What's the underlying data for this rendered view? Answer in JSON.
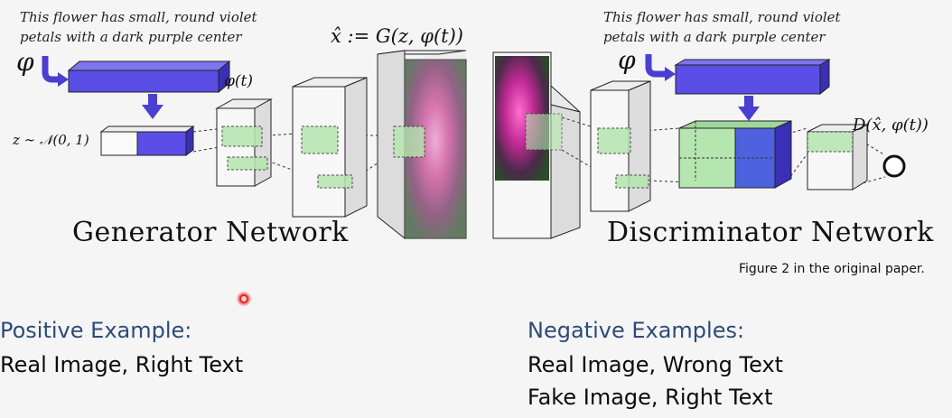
{
  "figure": {
    "generator": {
      "caption_line1": "This flower has small, round violet",
      "caption_line2": "petals with a dark purple center",
      "phi_symbol": "φ",
      "phi_t_label": "φ(t)",
      "z_label": "z ∼ 𝒩(0, 1)",
      "output_formula": "x̂ := G(z, φ(t))",
      "network_label": "Generator Network"
    },
    "discriminator": {
      "caption_line1": "This flower has small, round violet",
      "caption_line2": "petals with a dark purple center",
      "phi_symbol": "φ",
      "output_formula": "D(x̂, φ(t))",
      "network_label": "Discriminator Network"
    },
    "source_note": "Figure 2 in the original paper.",
    "colors": {
      "embedding": "#5a4ee6",
      "feature_map": "#b6e6b0",
      "heading": "#2d4b78"
    }
  },
  "examples": {
    "positive_heading": "Positive Example:",
    "positive_items": [
      "Real Image, Right Text"
    ],
    "negative_heading": "Negative Examples:",
    "negative_items": [
      "Real Image, Wrong Text",
      "Fake Image, Right Text"
    ]
  },
  "pointer_icon": "laser-pointer-dot"
}
